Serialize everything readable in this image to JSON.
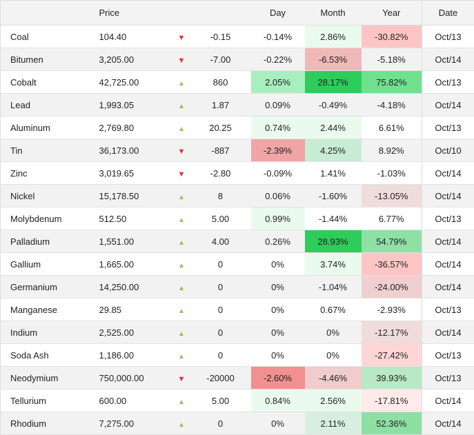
{
  "headers": {
    "name": "",
    "price": "Price",
    "change": "",
    "day": "Day",
    "month": "Month",
    "year": "Year",
    "date": "Date"
  },
  "colors": {
    "up": "#8cc751",
    "down": "#e03131"
  },
  "rows": [
    {
      "name": "Coal",
      "price": "104.40",
      "dir": "down",
      "change": "-0.15",
      "day": "-0.14%",
      "month": "2.86%",
      "year": "-30.82%",
      "date": "Oct/13",
      "dayBg": "",
      "monthBg": "#ebfaee",
      "yearBg": "#ffc5c5"
    },
    {
      "name": "Bitumen",
      "price": "3,205.00",
      "dir": "down",
      "change": "-7.00",
      "day": "-0.22%",
      "month": "-6.53%",
      "year": "-5.18%",
      "date": "Oct/14",
      "dayBg": "",
      "monthBg": "#f0b8b8",
      "yearBg": ""
    },
    {
      "name": "Cobalt",
      "price": "42,725.00",
      "dir": "up",
      "change": "860",
      "day": "2.05%",
      "month": "28.17%",
      "year": "75.82%",
      "date": "Oct/13",
      "dayBg": "#a8efc0",
      "monthBg": "#2ecc5a",
      "yearBg": "#6ee08e"
    },
    {
      "name": "Lead",
      "price": "1,993.05",
      "dir": "up",
      "change": "1.87",
      "day": "0.09%",
      "month": "-0.49%",
      "year": "-4.18%",
      "date": "Oct/14",
      "dayBg": "",
      "monthBg": "",
      "yearBg": ""
    },
    {
      "name": "Aluminum",
      "price": "2,769.80",
      "dir": "up",
      "change": "20.25",
      "day": "0.74%",
      "month": "2.44%",
      "year": "6.61%",
      "date": "Oct/13",
      "dayBg": "#ebfaee",
      "monthBg": "#ebfaee",
      "yearBg": ""
    },
    {
      "name": "Tin",
      "price": "36,173.00",
      "dir": "down",
      "change": "-887",
      "day": "-2.39%",
      "month": "4.25%",
      "year": "8.92%",
      "date": "Oct/10",
      "dayBg": "#f0a5a5",
      "monthBg": "#c9ecd4",
      "yearBg": ""
    },
    {
      "name": "Zinc",
      "price": "3,019.65",
      "dir": "down",
      "change": "-2.80",
      "day": "-0.09%",
      "month": "1.41%",
      "year": "-1.03%",
      "date": "Oct/14",
      "dayBg": "",
      "monthBg": "",
      "yearBg": ""
    },
    {
      "name": "Nickel",
      "price": "15,178.50",
      "dir": "up",
      "change": "8",
      "day": "0.06%",
      "month": "-1.60%",
      "year": "-13.05%",
      "date": "Oct/14",
      "dayBg": "",
      "monthBg": "",
      "yearBg": "#f0dcdc"
    },
    {
      "name": "Molybdenum",
      "price": "512.50",
      "dir": "up",
      "change": "5.00",
      "day": "0.99%",
      "month": "-1.44%",
      "year": "6.77%",
      "date": "Oct/13",
      "dayBg": "#ebfaee",
      "monthBg": "",
      "yearBg": ""
    },
    {
      "name": "Palladium",
      "price": "1,551.00",
      "dir": "up",
      "change": "4.00",
      "day": "0.26%",
      "month": "28.93%",
      "year": "54.79%",
      "date": "Oct/14",
      "dayBg": "",
      "monthBg": "#2ecc5a",
      "yearBg": "#8fe0a6"
    },
    {
      "name": "Gallium",
      "price": "1,665.00",
      "dir": "up",
      "change": "0",
      "day": "0%",
      "month": "3.74%",
      "year": "-36.57%",
      "date": "Oct/14",
      "dayBg": "",
      "monthBg": "#ebfaee",
      "yearBg": "#ffc5c5"
    },
    {
      "name": "Germanium",
      "price": "14,250.00",
      "dir": "up",
      "change": "0",
      "day": "0%",
      "month": "-1.04%",
      "year": "-24.00%",
      "date": "Oct/14",
      "dayBg": "",
      "monthBg": "",
      "yearBg": "#f0cfcf"
    },
    {
      "name": "Manganese",
      "price": "29.85",
      "dir": "up",
      "change": "0",
      "day": "0%",
      "month": "0.67%",
      "year": "-2.93%",
      "date": "Oct/13",
      "dayBg": "",
      "monthBg": "",
      "yearBg": ""
    },
    {
      "name": "Indium",
      "price": "2,525.00",
      "dir": "up",
      "change": "0",
      "day": "0%",
      "month": "0%",
      "year": "-12.17%",
      "date": "Oct/14",
      "dayBg": "",
      "monthBg": "",
      "yearBg": "#f0dcdc"
    },
    {
      "name": "Soda Ash",
      "price": "1,186.00",
      "dir": "up",
      "change": "0",
      "day": "0%",
      "month": "0%",
      "year": "-27.42%",
      "date": "Oct/13",
      "dayBg": "",
      "monthBg": "",
      "yearBg": "#ffd5d5"
    },
    {
      "name": "Neodymium",
      "price": "750,000.00",
      "dir": "down",
      "change": "-20000",
      "day": "-2.60%",
      "month": "-4.46%",
      "year": "39.93%",
      "date": "Oct/13",
      "dayBg": "#f09090",
      "monthBg": "#f0cccc",
      "yearBg": "#b8e8c6"
    },
    {
      "name": "Tellurium",
      "price": "600.00",
      "dir": "up",
      "change": "5.00",
      "day": "0.84%",
      "month": "2.56%",
      "year": "-17.81%",
      "date": "Oct/14",
      "dayBg": "#ebfaee",
      "monthBg": "#ebfaee",
      "yearBg": "#ffeaea"
    },
    {
      "name": "Rhodium",
      "price": "7,275.00",
      "dir": "up",
      "change": "0",
      "day": "0%",
      "month": "2.11%",
      "year": "52.36%",
      "date": "Oct/14",
      "dayBg": "",
      "monthBg": "#d8efe0",
      "yearBg": "#8edfa4"
    }
  ]
}
